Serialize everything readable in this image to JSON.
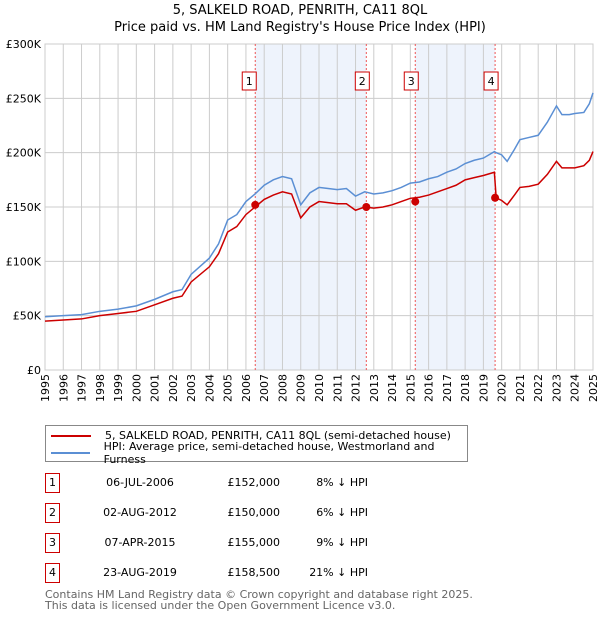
{
  "chart_data": {
    "type": "line",
    "title": "5, SALKELD ROAD, PENRITH, CA11 8QL",
    "subtitle": "Price paid vs. HM Land Registry's House Price Index (HPI)",
    "xlim": [
      1995,
      2025
    ],
    "ylim": [
      0,
      300000
    ],
    "yticks": [
      "£0",
      "£50K",
      "£100K",
      "£150K",
      "£200K",
      "£250K",
      "£300K"
    ],
    "ytick_values": [
      0,
      50000,
      100000,
      150000,
      200000,
      250000,
      300000
    ],
    "xticks": [
      "1995",
      "1996",
      "1997",
      "1998",
      "1999",
      "2000",
      "2001",
      "2002",
      "2003",
      "2004",
      "2005",
      "2006",
      "2007",
      "2008",
      "2009",
      "2010",
      "2011",
      "2012",
      "2013",
      "2014",
      "2015",
      "2016",
      "2017",
      "2018",
      "2019",
      "2020",
      "2021",
      "2022",
      "2023",
      "2024",
      "2025"
    ],
    "grid": true,
    "x": [
      1995,
      1996,
      1997,
      1998,
      1999,
      2000,
      2001,
      2002,
      2002.5,
      2003,
      2004,
      2004.5,
      2005,
      2005.5,
      2006,
      2006.5,
      2007,
      2007.5,
      2008,
      2008.5,
      2009,
      2009.5,
      2010,
      2010.5,
      2011,
      2011.5,
      2012,
      2012.5,
      2013,
      2013.5,
      2014,
      2014.5,
      2015,
      2015.5,
      2016,
      2016.5,
      2017,
      2017.5,
      2018,
      2018.5,
      2019,
      2019.6,
      2019.7,
      2020,
      2020.3,
      2020.7,
      2021,
      2021.5,
      2022,
      2022.5,
      2023,
      2023.3,
      2023.7,
      2024,
      2024.5,
      2024.8,
      2025
    ],
    "series": [
      {
        "name": "5, SALKELD ROAD, PENRITH, CA11 8QL (semi-detached house)",
        "color": "#cc0000",
        "values": [
          45000,
          46000,
          47000,
          50000,
          52000,
          54000,
          60000,
          66000,
          68000,
          81000,
          95000,
          107000,
          127000,
          132000,
          143000,
          150000,
          157000,
          161000,
          164000,
          162000,
          140000,
          150000,
          155000,
          154000,
          153000,
          153000,
          147000,
          150000,
          149000,
          150000,
          152000,
          155000,
          158000,
          159000,
          161000,
          164000,
          167000,
          170000,
          175000,
          177000,
          179000,
          182000,
          158500,
          156000,
          152000,
          161000,
          168000,
          169000,
          171000,
          180000,
          192000,
          186000,
          186000,
          186000,
          188000,
          193000,
          201000
        ]
      },
      {
        "name": "HPI: Average price, semi-detached house, Westmorland and Furness",
        "color": "#5b8fd4",
        "values": [
          49000,
          50000,
          51000,
          54000,
          56000,
          59000,
          65000,
          72000,
          74000,
          88000,
          103000,
          116000,
          138000,
          143000,
          155000,
          162000,
          170000,
          175000,
          178000,
          176000,
          152000,
          163000,
          168000,
          167000,
          166000,
          167000,
          160000,
          164000,
          162000,
          163000,
          165000,
          168000,
          172000,
          173000,
          176000,
          178000,
          182000,
          185000,
          190000,
          193000,
          195000,
          201000,
          200000,
          198000,
          192000,
          203000,
          212000,
          214000,
          216000,
          228000,
          243000,
          235000,
          235000,
          236000,
          237000,
          245000,
          255000
        ]
      }
    ],
    "sales": [
      {
        "label": "1",
        "x": 2006.51,
        "price": 152000,
        "date": "06-JUL-2006",
        "price_text": "£152,000",
        "hpi_text": "8% ↓ HPI"
      },
      {
        "label": "2",
        "x": 2012.59,
        "price": 150000,
        "date": "02-AUG-2012",
        "price_text": "£150,000",
        "hpi_text": "6% ↓ HPI"
      },
      {
        "label": "3",
        "x": 2015.27,
        "price": 155000,
        "date": "07-APR-2015",
        "price_text": "£155,000",
        "hpi_text": "9% ↓ HPI"
      },
      {
        "label": "4",
        "x": 2019.64,
        "price": 158500,
        "date": "23-AUG-2019",
        "price_text": "£158,500",
        "hpi_text": "21% ↓ HPI"
      }
    ],
    "shaded": [
      [
        2006.51,
        2012.59
      ],
      [
        2015.27,
        2019.64
      ]
    ]
  },
  "legend": {
    "red": "5, SALKELD ROAD, PENRITH, CA11 8QL (semi-detached house)",
    "blue": "HPI: Average price, semi-detached house, Westmorland and Furness"
  },
  "footer": {
    "line1": "Contains HM Land Registry data © Crown copyright and database right 2025.",
    "line2": "This data is licensed under the Open Government Licence v3.0."
  }
}
